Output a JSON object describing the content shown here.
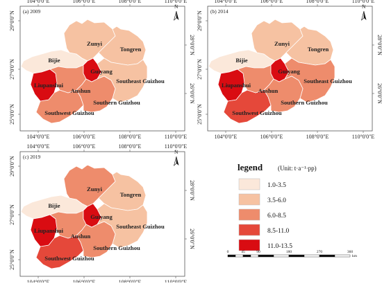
{
  "colors": {
    "c1": "#fbe8da",
    "c2": "#f6c2a2",
    "c3": "#ee8c6c",
    "c4": "#e5483a",
    "c5": "#d90c12",
    "border": "#ffffff",
    "frame": "#555555"
  },
  "axes": {
    "x_ticks": [
      "104°0'0\"E",
      "106°0'0\"E",
      "108°0'0\"E",
      "110°0'0\"E"
    ],
    "y_ticks": [
      "29°0'0\"N",
      "27°0'0\"N",
      "25°0'0\"N"
    ],
    "y_ticks_right": [
      "28°0'0\"N",
      "26°0'0\"N"
    ]
  },
  "north_arrow": {
    "letter": "N"
  },
  "panels": [
    {
      "title": "(a) 2009",
      "regions": {
        "zunyi": "c2",
        "tongren": "c2",
        "bijie": "c1",
        "guiyang": "c5",
        "liupanshui": "c5",
        "anshun": "c3",
        "southwest": "c3",
        "southern": "c3",
        "southeast": "c2"
      }
    },
    {
      "title": "(b) 2014",
      "regions": {
        "zunyi": "c2",
        "tongren": "c2",
        "bijie": "c1",
        "guiyang": "c5",
        "liupanshui": "c5",
        "anshun": "c3",
        "southwest": "c4",
        "southern": "c3",
        "southeast": "c3"
      }
    },
    {
      "title": "(c) 2019",
      "regions": {
        "zunyi": "c3",
        "tongren": "c2",
        "bijie": "c1",
        "guiyang": "c5",
        "liupanshui": "c5",
        "anshun": "c3",
        "southwest": "c4",
        "southern": "c3",
        "southeast": "c2"
      }
    }
  ],
  "region_labels": {
    "zunyi": "Zunyi",
    "tongren": "Tongren",
    "bijie": "Bijie",
    "guiyang": "Guiyang",
    "liupanshui": "Liupanshui",
    "anshun": "Anshun",
    "southwest": "Southwest Guizhou",
    "southern": "Southern Guizhou",
    "southeast": "Southeast Guizhou"
  },
  "legend": {
    "title": "legend",
    "unit": "(Unit: t·a⁻¹·pp)",
    "items": [
      {
        "label": "1.0-3.5",
        "color": "c1"
      },
      {
        "label": "3.5-6.0",
        "color": "c2"
      },
      {
        "label": "6.0-8.5",
        "color": "c3"
      },
      {
        "label": "8.5-11.0",
        "color": "c4"
      },
      {
        "label": "11.0-13.5",
        "color": "c5"
      }
    ]
  },
  "scale_bar": {
    "ticks": [
      "0",
      "45",
      "90",
      "180",
      "270",
      "360"
    ],
    "unit": "km"
  }
}
